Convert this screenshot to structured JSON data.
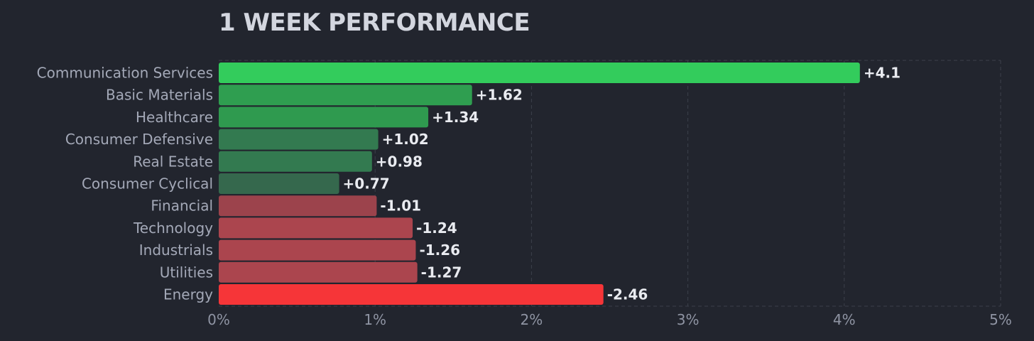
{
  "chart_data": {
    "type": "bar",
    "orientation": "horizontal",
    "title": "1 WEEK PERFORMANCE",
    "categories": [
      "Communication Services",
      "Basic Materials",
      "Healthcare",
      "Consumer Defensive",
      "Real Estate",
      "Consumer Cyclical",
      "Financial",
      "Technology",
      "Industrials",
      "Utilities",
      "Energy"
    ],
    "values": [
      4.1,
      1.62,
      1.34,
      1.02,
      0.98,
      0.77,
      -1.01,
      -1.24,
      -1.26,
      -1.27,
      -2.46
    ],
    "value_labels": [
      "+4.1",
      "+1.62",
      "+1.34",
      "+1.02",
      "+0.98",
      "+0.77",
      "-1.01",
      "-1.24",
      "-1.26",
      "-1.27",
      "-2.46"
    ],
    "bar_colors": [
      "#33cc5c",
      "#2f9e50",
      "#2f9a4f",
      "#337a50",
      "#337a50",
      "#35684d",
      "#9c434c",
      "#ab454e",
      "#ab454e",
      "#ab454e",
      "#f63538"
    ],
    "xticks": [
      0,
      1,
      2,
      3,
      4,
      5
    ],
    "xtick_labels": [
      "0%",
      "1%",
      "2%",
      "3%",
      "4%",
      "5%"
    ],
    "xlim": [
      0,
      5
    ],
    "bar_length": "absolute value",
    "grid": "vertical dashed",
    "xlabel": "",
    "ylabel": "",
    "colors": {
      "background": "#22252e",
      "title": "#d3d6df",
      "category_text": "#a4a9b8",
      "value_text": "#e9ebf0",
      "tick_text": "#8f94a3",
      "grid": "#3c404b"
    }
  }
}
